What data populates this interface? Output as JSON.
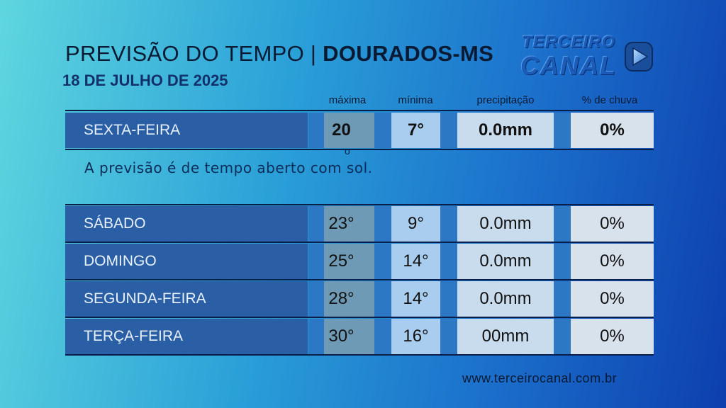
{
  "header": {
    "title_prefix": "PREVISÃO DO TEMPO | ",
    "title_city": "DOURADOS-MS",
    "date": "18 DE JULHO DE 2025"
  },
  "logo": {
    "line1": "TERCEIRO",
    "line2": "CANAL"
  },
  "columns": {
    "max": "máxima",
    "min": "mínima",
    "precip": "precipitação",
    "rain": "% de chuva"
  },
  "today": {
    "day": "SEXTA-FEIRA",
    "max": "20",
    "min": "7°",
    "precip": "0.0mm",
    "rain": "0%",
    "max_degree": "o",
    "description": "A previsão é de tempo aberto com sol."
  },
  "forecast": [
    {
      "day": "SÁBADO",
      "max": "23°",
      "min": "9°",
      "precip": "0.0mm",
      "rain": "0%"
    },
    {
      "day": "DOMINGO",
      "max": "25°",
      "min": "14°",
      "precip": "0.0mm",
      "rain": "0%"
    },
    {
      "day": "SEGUNDA-FEIRA",
      "max": "28°",
      "min": "14°",
      "precip": "0.0mm",
      "rain": "0%"
    },
    {
      "day": "TERÇA-FEIRA",
      "max": "30°",
      "min": "16°",
      "precip": "00mm",
      "rain": "0%"
    }
  ],
  "footer": {
    "website": "www.terceirocanal.com.br"
  }
}
